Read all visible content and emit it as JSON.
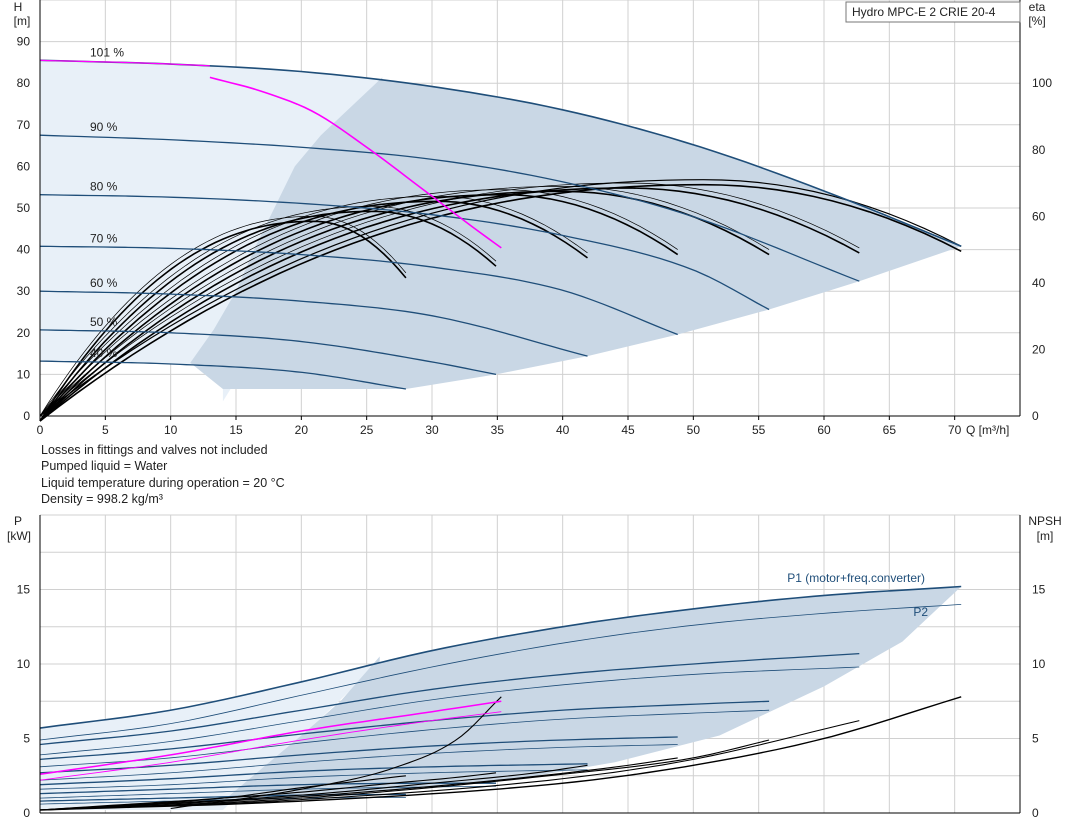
{
  "product_label": "Hydro MPC-E 2 CRIE 20-4",
  "notes": [
    "Losses in fittings and valves not included",
    "Pumped liquid = Water",
    "Liquid temperature during operation = 20 °C",
    "Density = 998.2 kg/m³"
  ],
  "colors": {
    "curve_blue": "#1f4e79",
    "duty_magenta": "#ff00ff",
    "efficiency_black": "#000000",
    "operating_area_fill": "#c9d7e5",
    "light_area_fill": "#e8f0f8",
    "grid": "#d0d0d0"
  },
  "chart_data": [
    {
      "type": "line",
      "name": "head",
      "xlabel_name": "Q",
      "xlabel_unit": "[m³/h]",
      "ylabel_name": "H",
      "ylabel_unit": "[m]",
      "y2label_name": "eta",
      "y2label_unit": "[%]",
      "xlim": [
        0,
        75
      ],
      "ylim": [
        0,
        100
      ],
      "y2lim": [
        0,
        125
      ],
      "xticks": [
        0,
        5,
        10,
        15,
        20,
        25,
        30,
        35,
        40,
        45,
        50,
        55,
        60,
        65,
        70
      ],
      "yticks": [
        0,
        10,
        20,
        30,
        40,
        50,
        60,
        70,
        80,
        90
      ],
      "y2ticks": [
        0,
        20,
        40,
        60,
        80,
        100
      ],
      "grid": true,
      "speed_curves": [
        {
          "label": "101 %",
          "x": [
            0,
            10,
            20,
            30,
            40,
            50,
            60,
            70.5
          ],
          "y": [
            85.5,
            84.6,
            82.8,
            79.2,
            73.6,
            65.2,
            54.1,
            40.8
          ]
        },
        {
          "label": "90 %",
          "x": [
            0,
            10,
            20,
            30,
            40,
            50,
            62.7
          ],
          "y": [
            67.5,
            66.4,
            64.6,
            61.7,
            56.3,
            47.9,
            32.4
          ]
        },
        {
          "label": "80 %",
          "x": [
            0,
            10,
            20,
            30,
            40,
            50,
            55.8
          ],
          "y": [
            53.2,
            52.6,
            51.1,
            48.4,
            43.4,
            35.1,
            25.6
          ]
        },
        {
          "label": "70 %",
          "x": [
            0,
            10,
            20,
            30,
            40,
            48.8
          ],
          "y": [
            40.8,
            40.3,
            38.8,
            35.8,
            30.2,
            19.6
          ]
        },
        {
          "label": "60 %",
          "x": [
            0,
            10,
            20,
            30,
            41.9
          ],
          "y": [
            30.0,
            29.3,
            27.6,
            24.1,
            14.4
          ]
        },
        {
          "label": "50 %",
          "x": [
            0,
            10,
            20,
            30,
            34.9
          ],
          "y": [
            20.7,
            20.0,
            17.9,
            13.0,
            10.0
          ]
        },
        {
          "label": "40 %",
          "x": [
            0,
            10,
            20,
            28.0
          ],
          "y": [
            13.2,
            12.5,
            10.5,
            6.5
          ]
        }
      ],
      "duty_curve": {
        "x": [
          13.0,
          17.0,
          21.0,
          25.0,
          29.0,
          33.0,
          35.3
        ],
        "y": [
          81.4,
          78.0,
          73.0,
          64.6,
          55.2,
          45.7,
          40.4
        ]
      },
      "efficiency_curves": [
        {
          "qmax": 70.5,
          "peak": 71.0,
          "qpeak": 51.0,
          "end": 51.0
        },
        {
          "qmax": 62.7,
          "peak": 70.0,
          "qpeak": 45.0,
          "end": 50.5
        },
        {
          "qmax": 55.8,
          "peak": 69.0,
          "qpeak": 40.0,
          "end": 50.0
        },
        {
          "qmax": 48.8,
          "peak": 68.0,
          "qpeak": 35.5,
          "end": 50.0
        },
        {
          "qmax": 41.9,
          "peak": 66.0,
          "qpeak": 30.5,
          "end": 49.0
        },
        {
          "qmax": 34.9,
          "peak": 63.0,
          "qpeak": 25.5,
          "end": 46.5
        },
        {
          "qmax": 28.0,
          "peak": 60.0,
          "qpeak": 21.0,
          "end": 43.0
        }
      ]
    },
    {
      "type": "line",
      "name": "power",
      "ylabel_name": "P",
      "ylabel_unit": "[kW]",
      "y2label_name": "NPSH",
      "y2label_unit": "[m]",
      "xlim": [
        0,
        75
      ],
      "ylim": [
        0,
        20
      ],
      "y2lim": [
        0,
        20
      ],
      "yticks": [
        0,
        5,
        10,
        15
      ],
      "y2ticks": [
        0,
        5,
        10,
        15
      ],
      "grid": true,
      "p1_label": "P1 (motor+freq.converter)",
      "p2_label": "P2",
      "p1_curves": [
        {
          "x": [
            0,
            10,
            20,
            30,
            40,
            50,
            60,
            70.5
          ],
          "y": [
            5.7,
            6.9,
            8.8,
            10.9,
            12.5,
            13.7,
            14.6,
            15.2
          ]
        },
        {
          "x": [
            0,
            10,
            20,
            30,
            40,
            50,
            62.7
          ],
          "y": [
            4.6,
            5.5,
            6.9,
            8.3,
            9.3,
            10.0,
            10.7
          ]
        },
        {
          "x": [
            0,
            10,
            20,
            30,
            40,
            50,
            55.8
          ],
          "y": [
            3.6,
            4.3,
            5.3,
            6.2,
            6.9,
            7.3,
            7.5
          ]
        },
        {
          "x": [
            0,
            10,
            20,
            30,
            40,
            48.8
          ],
          "y": [
            2.7,
            3.2,
            3.9,
            4.5,
            4.9,
            5.1
          ]
        },
        {
          "x": [
            0,
            10,
            20,
            30,
            41.9
          ],
          "y": [
            1.9,
            2.3,
            2.8,
            3.1,
            3.3
          ]
        },
        {
          "x": [
            0,
            10,
            20,
            30,
            34.9
          ],
          "y": [
            1.3,
            1.6,
            1.9,
            2.0,
            2.0
          ]
        },
        {
          "x": [
            0,
            10,
            20,
            28.0
          ],
          "y": [
            0.8,
            1.0,
            1.2,
            1.25
          ]
        }
      ],
      "p2_curves": [
        {
          "x": [
            0,
            10,
            20,
            30,
            40,
            50,
            60,
            70.5
          ],
          "y": [
            4.9,
            6.0,
            7.9,
            9.8,
            11.4,
            12.6,
            13.4,
            14.0
          ]
        },
        {
          "x": [
            0,
            10,
            20,
            30,
            40,
            50,
            62.7
          ],
          "y": [
            3.9,
            4.8,
            6.2,
            7.6,
            8.6,
            9.3,
            9.8
          ]
        },
        {
          "x": [
            0,
            10,
            20,
            30,
            40,
            50,
            55.8
          ],
          "y": [
            3.1,
            3.7,
            4.7,
            5.6,
            6.3,
            6.7,
            6.9
          ]
        },
        {
          "x": [
            0,
            10,
            20,
            30,
            40,
            48.8
          ],
          "y": [
            2.2,
            2.7,
            3.4,
            4.0,
            4.4,
            4.6
          ]
        },
        {
          "x": [
            0,
            10,
            20,
            30,
            41.9
          ],
          "y": [
            1.6,
            1.9,
            2.4,
            2.7,
            2.9
          ]
        },
        {
          "x": [
            0,
            10,
            20,
            30,
            34.9
          ],
          "y": [
            1.0,
            1.3,
            1.6,
            1.75,
            1.8
          ]
        },
        {
          "x": [
            0,
            10,
            20,
            28.0
          ],
          "y": [
            0.6,
            0.8,
            1.0,
            1.05
          ]
        }
      ],
      "duty_p1": {
        "x": [
          0,
          10,
          20,
          30,
          35.3
        ],
        "y": [
          2.6,
          3.9,
          5.5,
          6.8,
          7.5
        ]
      },
      "duty_p2": {
        "x": [
          0,
          10,
          20,
          30,
          35.3
        ],
        "y": [
          2.2,
          3.4,
          4.9,
          6.2,
          6.8
        ]
      },
      "npsh_curves": [
        {
          "x": [
            0,
            20,
            40,
            50,
            60,
            70.5
          ],
          "y": [
            0.2,
            0.8,
            2.0,
            3.2,
            5.0,
            7.8
          ]
        },
        {
          "x": [
            0,
            20,
            40,
            50,
            62.7
          ],
          "y": [
            0.2,
            0.9,
            2.3,
            3.6,
            6.2
          ]
        },
        {
          "x": [
            0,
            20,
            40,
            50,
            55.8
          ],
          "y": [
            0.2,
            1.0,
            2.6,
            3.7,
            4.9
          ]
        },
        {
          "x": [
            0,
            20,
            35,
            45,
            48.8
          ],
          "y": [
            0.2,
            1.1,
            2.2,
            3.2,
            3.7
          ]
        },
        {
          "x": [
            0,
            20,
            30,
            38,
            41.9
          ],
          "y": [
            0.2,
            1.2,
            2.0,
            2.7,
            3.2
          ]
        },
        {
          "x": [
            0,
            20,
            27,
            32,
            34.9
          ],
          "y": [
            0.2,
            1.4,
            2.0,
            2.4,
            2.7
          ]
        },
        {
          "x": [
            0,
            14,
            20,
            25,
            28.0
          ],
          "y": [
            0.2,
            1.0,
            1.7,
            2.2,
            2.5
          ]
        },
        {
          "x": [
            10,
            20,
            27,
            32,
            35.3
          ],
          "y": [
            0.3,
            1.6,
            3.0,
            5.0,
            7.8
          ]
        }
      ]
    }
  ]
}
